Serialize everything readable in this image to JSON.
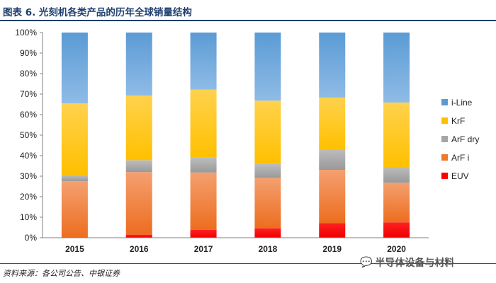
{
  "header": {
    "title": "图表 6. 光刻机各类产品的历年全球销量结构"
  },
  "footer": {
    "source": "资料来源：各公司公告、中银证券"
  },
  "watermark": {
    "text": "半导体设备与材料",
    "icon": "wechat-icon"
  },
  "chart_data": {
    "type": "bar",
    "stacked": true,
    "categories": [
      "2015",
      "2016",
      "2017",
      "2018",
      "2019",
      "2020"
    ],
    "ylim": [
      0,
      100
    ],
    "yticks": [
      "0%",
      "10%",
      "20%",
      "30%",
      "40%",
      "50%",
      "60%",
      "70%",
      "80%",
      "90%",
      "100%"
    ],
    "grid": false,
    "legend_position": "right",
    "series": [
      {
        "name": "EUV",
        "color": "#ff0000",
        "values": [
          0,
          1.5,
          3.8,
          4.6,
          7.1,
          7.5
        ]
      },
      {
        "name": "ArF i",
        "color": "#f07828",
        "values": [
          27.5,
          30.5,
          28.0,
          24.6,
          26.0,
          19.3
        ]
      },
      {
        "name": "ArF dry",
        "color": "#a6a6a6",
        "values": [
          3.0,
          5.8,
          7.2,
          6.8,
          10.0,
          7.7
        ]
      },
      {
        "name": "KrF",
        "color": "#ffc000",
        "values": [
          35.0,
          31.5,
          33.2,
          30.8,
          25.2,
          31.4
        ]
      },
      {
        "name": "i-Line",
        "color": "#5b9bd5",
        "values": [
          34.5,
          30.7,
          27.8,
          33.2,
          31.7,
          34.1
        ]
      }
    ]
  }
}
